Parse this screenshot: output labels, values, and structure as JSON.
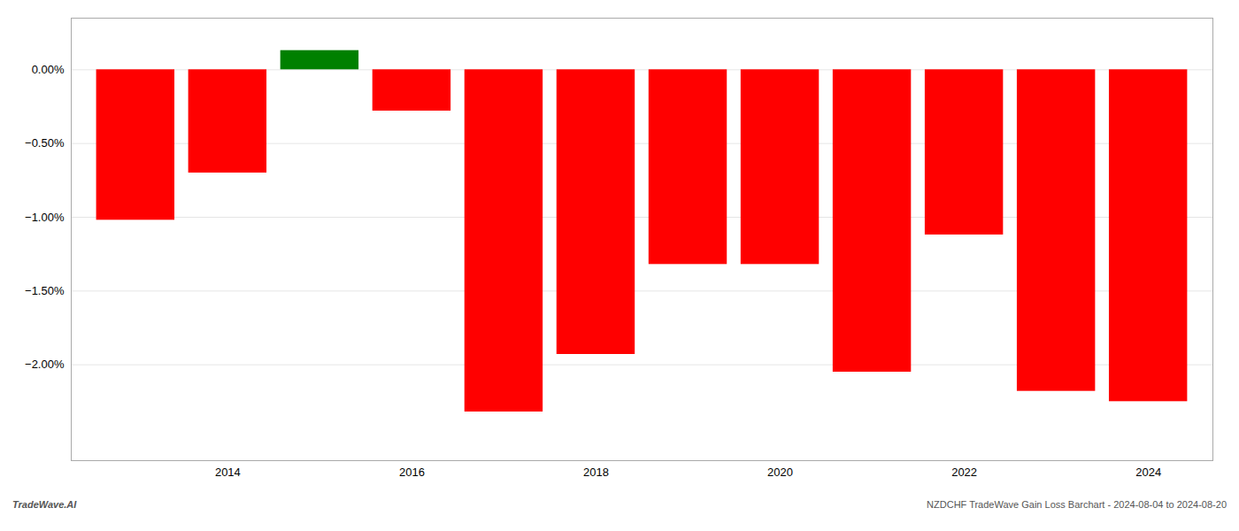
{
  "chart_data": {
    "type": "bar",
    "x": [
      2013,
      2014,
      2015,
      2016,
      2017,
      2018,
      2019,
      2020,
      2021,
      2022,
      2023,
      2024
    ],
    "values": [
      -1.02,
      -0.7,
      0.13,
      -0.28,
      -2.32,
      -1.93,
      -1.32,
      -1.32,
      -2.05,
      -1.12,
      -2.18,
      -2.25
    ],
    "colors": [
      "#ff0000",
      "#ff0000",
      "#008000",
      "#ff0000",
      "#ff0000",
      "#ff0000",
      "#ff0000",
      "#ff0000",
      "#ff0000",
      "#ff0000",
      "#ff0000",
      "#ff0000"
    ],
    "xlim": [
      2012.3,
      2024.7
    ],
    "xticks": [
      2014,
      2016,
      2018,
      2020,
      2022,
      2024
    ],
    "ylim": [
      -2.65,
      0.35
    ],
    "yticks": [
      {
        "value": 0.0,
        "label": "0.00%"
      },
      {
        "value": -0.5,
        "label": "−0.50%"
      },
      {
        "value": -1.0,
        "label": "−1.00%"
      },
      {
        "value": -1.5,
        "label": "−1.50%"
      },
      {
        "value": -2.0,
        "label": "−2.00%"
      }
    ],
    "grid": true,
    "annotations": [
      "TradeWave.AI",
      "NZDCHF TradeWave Gain Loss Barchart - 2024-08-04 to 2024-08-20"
    ]
  }
}
